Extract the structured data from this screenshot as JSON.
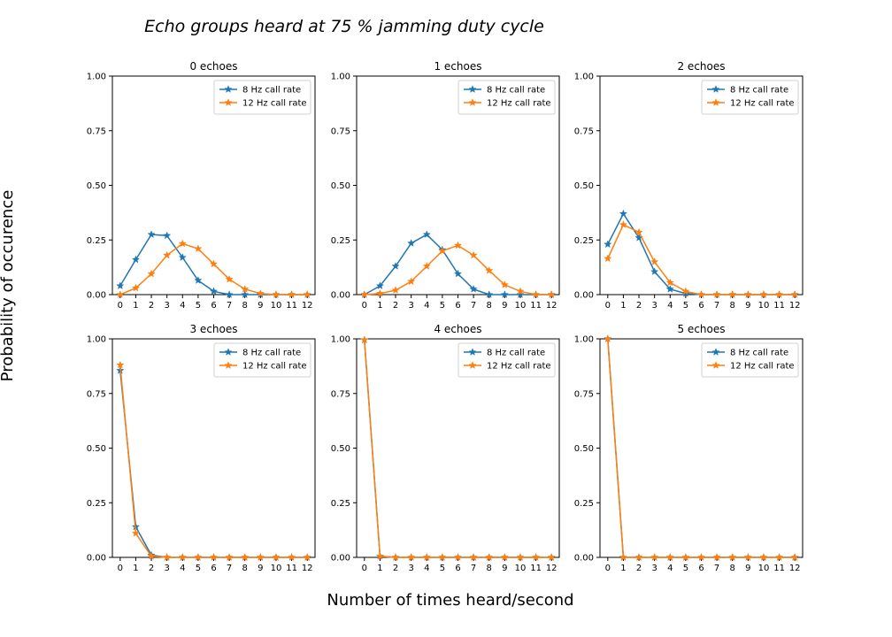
{
  "figure": {
    "title": "Echo groups heard at 75 % jamming duty cycle",
    "xlabel": "Number of times heard/second",
    "ylabel": "Probability of occurence"
  },
  "colors": {
    "series_8hz": "#1f77b4",
    "series_12hz": "#ff7f0e"
  },
  "chart_data": [
    {
      "type": "line",
      "title": "0 echoes",
      "x": [
        0,
        1,
        2,
        3,
        4,
        5,
        6,
        7,
        8,
        9,
        10,
        11,
        12
      ],
      "ylim": [
        0,
        1
      ],
      "yticks": [
        "0.00",
        "0.25",
        "0.50",
        "0.75",
        "1.00"
      ],
      "legend": "top-right",
      "series": [
        {
          "name": "8 Hz call rate",
          "values": [
            0.04,
            0.16,
            0.275,
            0.27,
            0.17,
            0.065,
            0.015,
            0.0,
            0.0,
            0,
            0,
            0,
            0
          ]
        },
        {
          "name": "12 Hz call rate",
          "values": [
            0.0,
            0.03,
            0.095,
            0.18,
            0.233,
            0.21,
            0.14,
            0.07,
            0.025,
            0.005,
            0,
            0,
            0
          ]
        }
      ]
    },
    {
      "type": "line",
      "title": "1 echoes",
      "x": [
        0,
        1,
        2,
        3,
        4,
        5,
        6,
        7,
        8,
        9,
        10,
        11,
        12
      ],
      "ylim": [
        0,
        1
      ],
      "yticks": [
        "0.00",
        "0.25",
        "0.50",
        "0.75",
        "1.00"
      ],
      "legend": "top-right",
      "series": [
        {
          "name": "8 Hz call rate",
          "values": [
            0.0,
            0.04,
            0.13,
            0.235,
            0.275,
            0.205,
            0.095,
            0.025,
            0.0,
            0,
            0,
            0,
            0
          ]
        },
        {
          "name": "12 Hz call rate",
          "values": [
            0.0,
            0.005,
            0.02,
            0.06,
            0.13,
            0.2,
            0.225,
            0.18,
            0.11,
            0.045,
            0.015,
            0.0,
            0
          ]
        }
      ]
    },
    {
      "type": "line",
      "title": "2 echoes",
      "x": [
        0,
        1,
        2,
        3,
        4,
        5,
        6,
        7,
        8,
        9,
        10,
        11,
        12
      ],
      "ylim": [
        0,
        1
      ],
      "yticks": [
        "0.00",
        "0.25",
        "0.50",
        "0.75",
        "1.00"
      ],
      "legend": "top-right",
      "series": [
        {
          "name": "8 Hz call rate",
          "values": [
            0.23,
            0.37,
            0.26,
            0.105,
            0.025,
            0.005,
            0,
            0,
            0,
            0,
            0,
            0,
            0
          ]
        },
        {
          "name": "12 Hz call rate",
          "values": [
            0.165,
            0.32,
            0.285,
            0.15,
            0.055,
            0.015,
            0.0,
            0,
            0,
            0,
            0,
            0,
            0
          ]
        }
      ]
    },
    {
      "type": "line",
      "title": "3 echoes",
      "x": [
        0,
        1,
        2,
        3,
        4,
        5,
        6,
        7,
        8,
        9,
        10,
        11,
        12
      ],
      "ylim": [
        0,
        1
      ],
      "yticks": [
        "0.00",
        "0.25",
        "0.50",
        "0.75",
        "1.00"
      ],
      "legend": "top-right",
      "series": [
        {
          "name": "8 Hz call rate",
          "values": [
            0.855,
            0.14,
            0.01,
            0,
            0,
            0,
            0,
            0,
            0,
            0,
            0,
            0,
            0
          ]
        },
        {
          "name": "12 Hz call rate",
          "values": [
            0.88,
            0.11,
            0.005,
            0,
            0,
            0,
            0,
            0,
            0,
            0,
            0,
            0,
            0
          ]
        }
      ]
    },
    {
      "type": "line",
      "title": "4 echoes",
      "x": [
        0,
        1,
        2,
        3,
        4,
        5,
        6,
        7,
        8,
        9,
        10,
        11,
        12
      ],
      "ylim": [
        0,
        1
      ],
      "yticks": [
        "0.00",
        "0.25",
        "0.50",
        "0.75",
        "1.00"
      ],
      "legend": "top-right",
      "series": [
        {
          "name": "8 Hz call rate",
          "values": [
            0.995,
            0.005,
            0,
            0,
            0,
            0,
            0,
            0,
            0,
            0,
            0,
            0,
            0
          ]
        },
        {
          "name": "12 Hz call rate",
          "values": [
            0.995,
            0.005,
            0,
            0,
            0,
            0,
            0,
            0,
            0,
            0,
            0,
            0,
            0
          ]
        }
      ]
    },
    {
      "type": "line",
      "title": "5 echoes",
      "x": [
        0,
        1,
        2,
        3,
        4,
        5,
        6,
        7,
        8,
        9,
        10,
        11,
        12
      ],
      "ylim": [
        0,
        1
      ],
      "yticks": [
        "0.00",
        "0.25",
        "0.50",
        "0.75",
        "1.00"
      ],
      "legend": "top-right",
      "series": [
        {
          "name": "8 Hz call rate",
          "values": [
            1.0,
            0,
            0,
            0,
            0,
            0,
            0,
            0,
            0,
            0,
            0,
            0,
            0
          ]
        },
        {
          "name": "12 Hz call rate",
          "values": [
            1.0,
            0,
            0,
            0,
            0,
            0,
            0,
            0,
            0,
            0,
            0,
            0,
            0
          ]
        }
      ]
    }
  ]
}
